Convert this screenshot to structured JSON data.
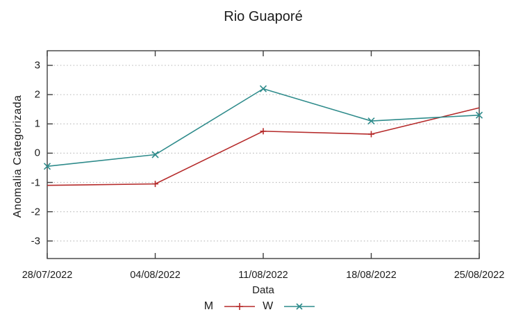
{
  "chart_data": {
    "type": "line",
    "title": "Rio Guaporé",
    "xlabel": "Data",
    "ylabel": "Anomalia Categorizada",
    "categories": [
      "28/07/2022",
      "04/08/2022",
      "11/08/2022",
      "18/08/2022",
      "25/08/2022"
    ],
    "yticks": [
      3,
      2,
      1,
      0,
      -1,
      -2,
      -3
    ],
    "ylim": [
      -3.6,
      3.5
    ],
    "grid": "horizontal-dotted",
    "legend_position": "bottom-center",
    "series": [
      {
        "name": "M",
        "color": "#b52a2a",
        "marker": "plus",
        "marker_at": [
          1,
          2,
          3
        ],
        "values": [
          -1.1,
          -1.05,
          0.75,
          0.65,
          1.55
        ]
      },
      {
        "name": "W",
        "color": "#2e8b8b",
        "marker": "cross",
        "marker_at": [
          0,
          1,
          2,
          3,
          4
        ],
        "values": [
          -0.45,
          -0.05,
          2.2,
          1.1,
          1.3
        ]
      }
    ]
  },
  "colors": {
    "background": "#ffffff",
    "border": "#3f3f3f",
    "grid": "#bcbcbc",
    "text": "#1c1c1c"
  }
}
